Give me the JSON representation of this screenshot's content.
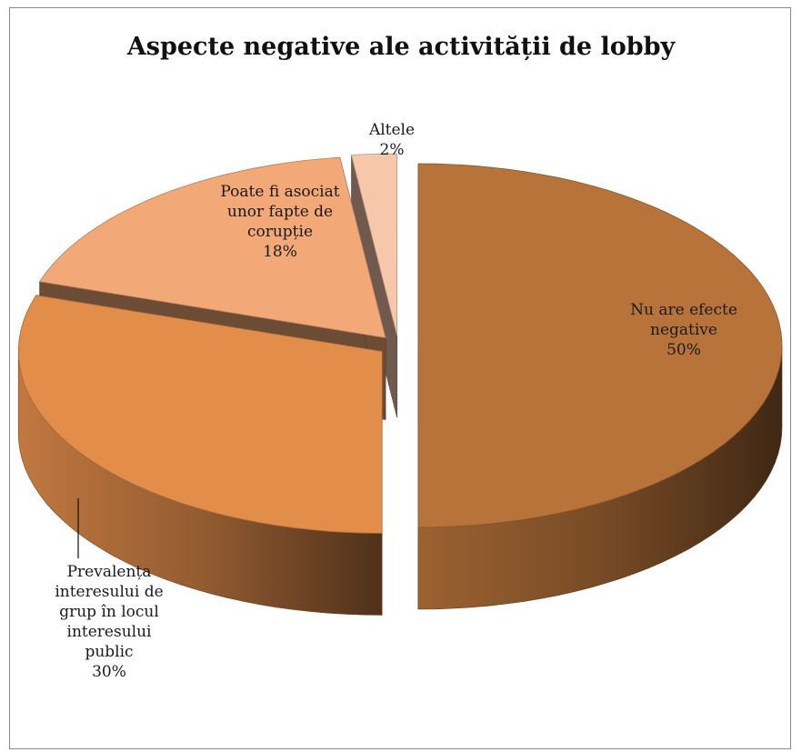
{
  "chart_data": {
    "type": "pie",
    "title": "Aspecte negative ale activității de lobby",
    "three_d": true,
    "exploded": true,
    "slices": [
      {
        "label": "Nu are efecte negative",
        "value": 50,
        "percent_label": "50%",
        "color": "#B8733A"
      },
      {
        "label": "Prevalența interesului de grup în locul interesului public",
        "value": 30,
        "percent_label": "30%",
        "color": "#E38D4B"
      },
      {
        "label": "Poate fi asociat unor fapte de corupție",
        "value": 18,
        "percent_label": "18%",
        "color": "#F2A877"
      },
      {
        "label": "Altele",
        "value": 2,
        "percent_label": "2%",
        "color": "#F7C7AB"
      }
    ]
  }
}
